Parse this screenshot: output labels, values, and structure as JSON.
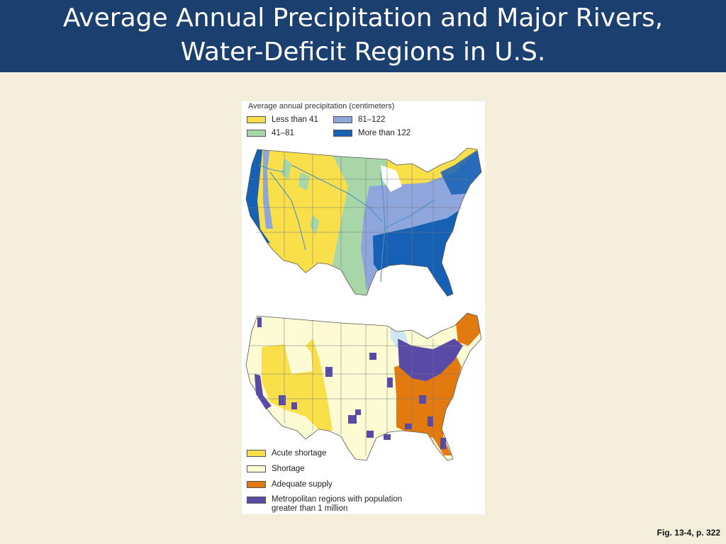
{
  "slide": {
    "title_line1": "Average Annual Precipitation and Major Rivers,",
    "title_line2": "Water-Deficit Regions in U.S.",
    "caption": "Fig. 13-4, p. 322"
  },
  "precip_legend": {
    "heading": "Average annual precipitation (centimeters)",
    "items": [
      {
        "label": "Less than 41",
        "color": "#f9e04b"
      },
      {
        "label": "41–81",
        "color": "#a9d6a8"
      },
      {
        "label": "81–122",
        "color": "#8ea6dc"
      },
      {
        "label": "More than 122",
        "color": "#1660b5"
      }
    ]
  },
  "water_legend": {
    "items": [
      {
        "label": "Acute shortage",
        "color": "#f9e04b"
      },
      {
        "label": "Shortage",
        "color": "#fdfbd4"
      },
      {
        "label": "Adequate supply",
        "color": "#e37a10"
      },
      {
        "label": "Metropolitan regions with population",
        "label2": "greater than 1 million",
        "color": "#5a4aa8"
      }
    ]
  },
  "colors": {
    "title_bar": "#1b3f6e",
    "background": "#f4eedc",
    "river": "#4a90c8",
    "lakes": "#cfe6f5"
  }
}
